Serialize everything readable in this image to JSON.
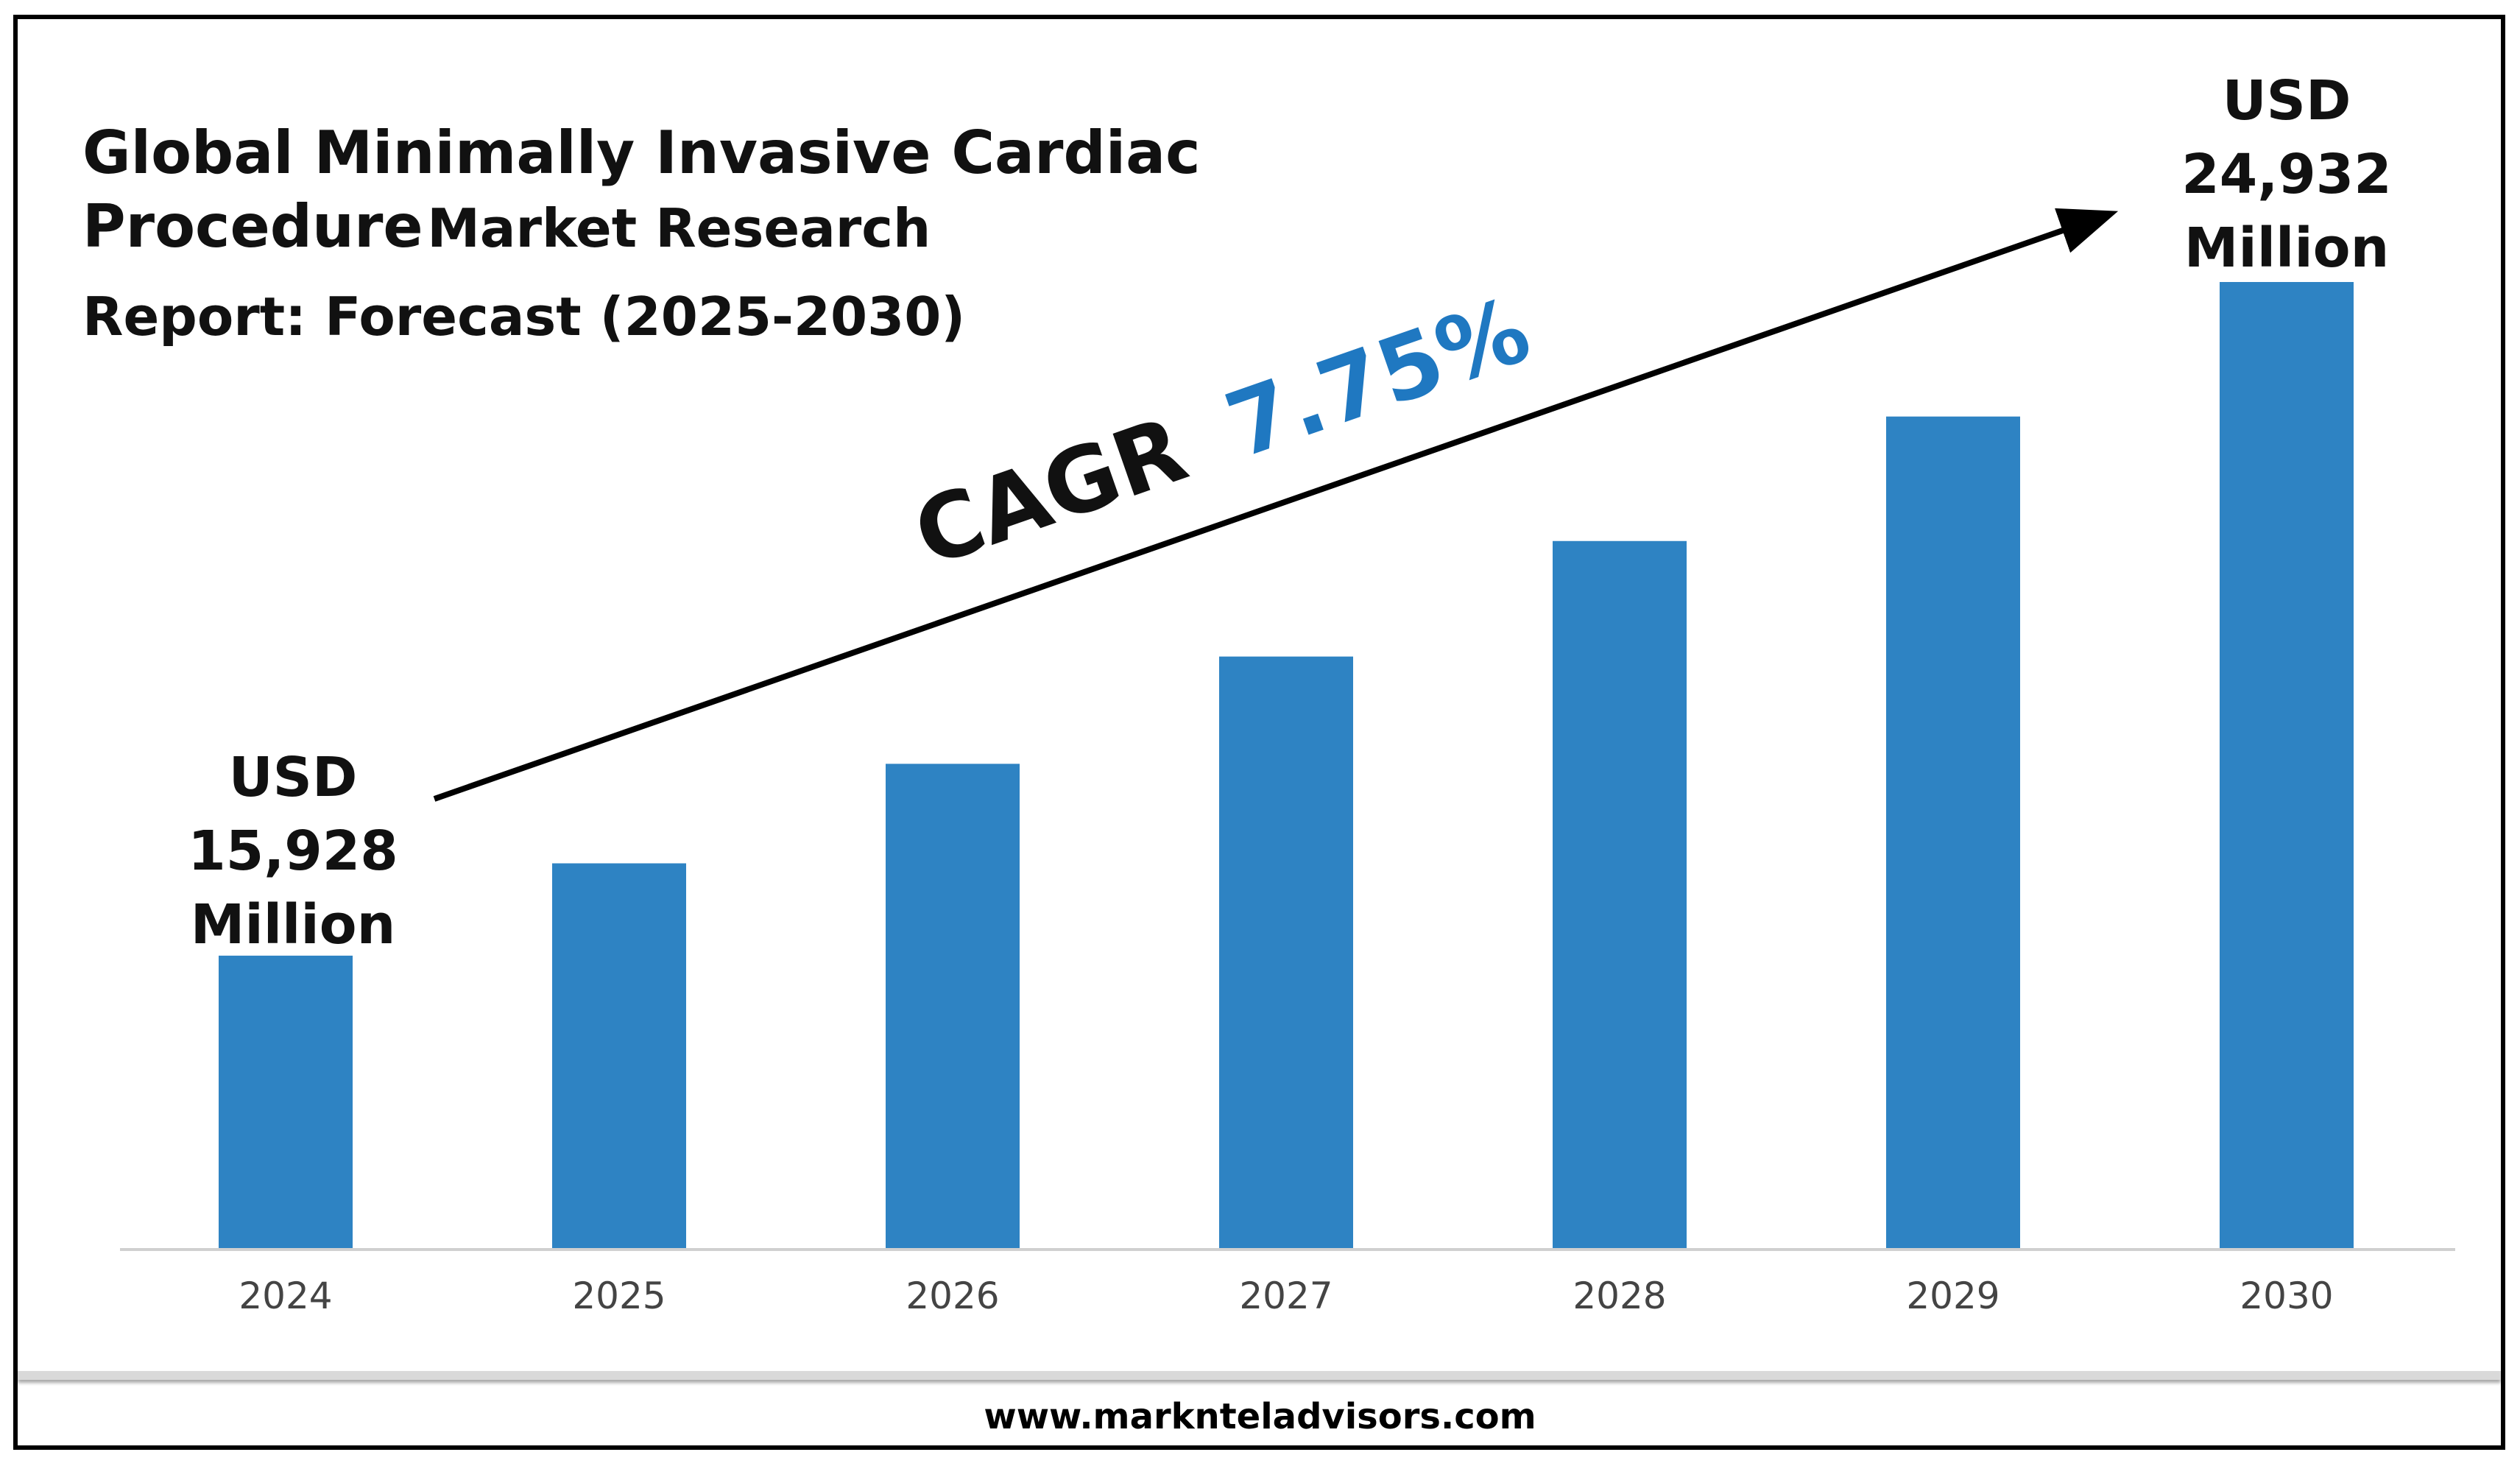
{
  "title": {
    "line1": "Global Minimally Invasive Cardiac",
    "line2a": "Procedure",
    "line2b": "Market Research",
    "line3": "Report: Forecast (2025-2030)"
  },
  "footer": {
    "url": "www.marknteladvisors.com"
  },
  "colors": {
    "bar": "#2E83C3",
    "cagr_value": "#1F78C1",
    "text": "#111111",
    "axis": "#d0d0d0"
  },
  "chart_data": {
    "type": "bar",
    "categories": [
      "2024",
      "2025",
      "2026",
      "2027",
      "2028",
      "2029",
      "2030"
    ],
    "values": [
      15928,
      17162,
      18492,
      19926,
      21470,
      23134,
      24932
    ],
    "unit": "USD Million",
    "ylim": [
      12000,
      27000
    ],
    "grid": false,
    "legend": "none",
    "annotations": {
      "start_label": [
        "USD",
        "15,928",
        "Million"
      ],
      "end_label": [
        "USD",
        "24,932",
        "Million"
      ],
      "cagr_prefix": "CAGR",
      "cagr_value": "7.75%"
    }
  }
}
